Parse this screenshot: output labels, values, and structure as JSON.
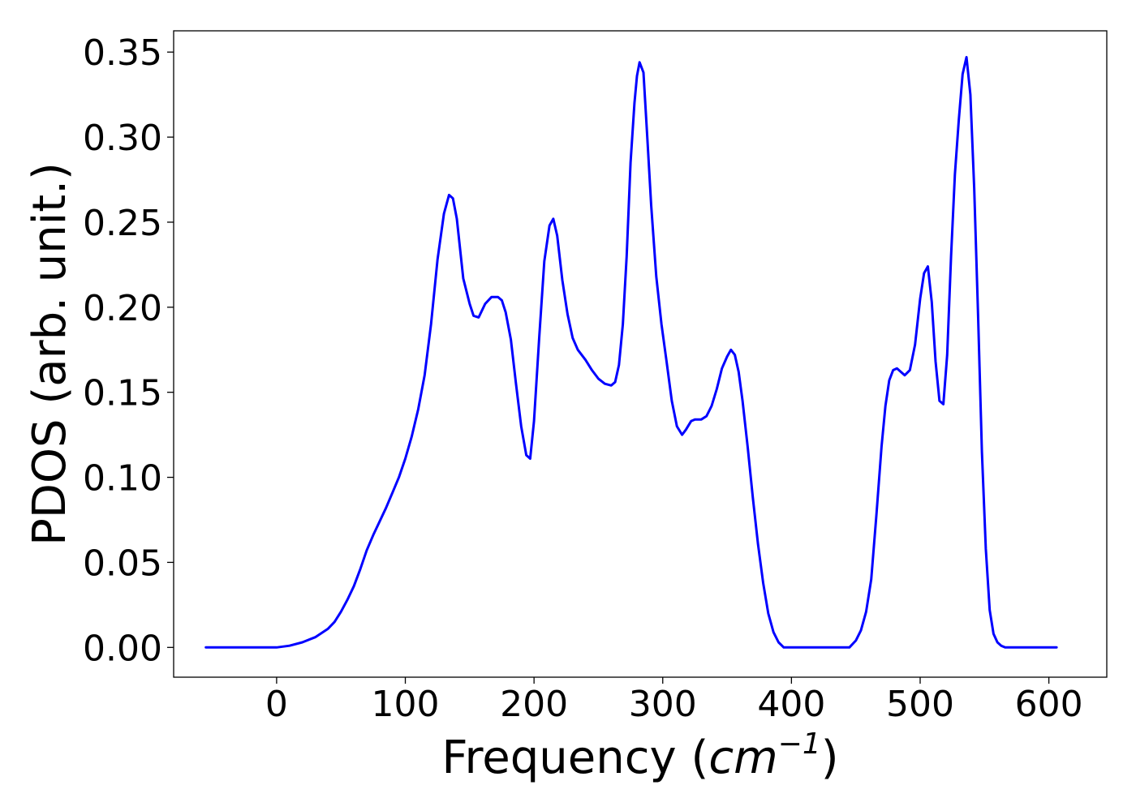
{
  "chart_data": {
    "type": "line",
    "title": "",
    "xlabel": {
      "prefix": "Frequency (",
      "unit": "cm",
      "exponent": "−1",
      "suffix": ")"
    },
    "ylabel": "PDOS (arb. unit.)",
    "xlim": [
      -80,
      645
    ],
    "ylim": [
      -0.0175,
      0.3625
    ],
    "x_ticks": [
      0,
      100,
      200,
      300,
      400,
      500,
      600
    ],
    "x_tick_labels": [
      "0",
      "100",
      "200",
      "300",
      "400",
      "500",
      "600"
    ],
    "y_ticks": [
      0.0,
      0.05,
      0.1,
      0.15,
      0.2,
      0.25,
      0.3,
      0.35
    ],
    "y_tick_labels": [
      "0.00",
      "0.05",
      "0.10",
      "0.15",
      "0.20",
      "0.25",
      "0.30",
      "0.35"
    ],
    "grid": false,
    "legend": "none",
    "line_color": "#0000ff",
    "series": [
      {
        "x": [
          -55,
          -30,
          0,
          10,
          20,
          30,
          40,
          45,
          50,
          55,
          60,
          65,
          70,
          75,
          80,
          85,
          90,
          95,
          100,
          105,
          110,
          115,
          120,
          125,
          130,
          134,
          137,
          140,
          145,
          150,
          153,
          157,
          162,
          167,
          172,
          175,
          178,
          182,
          186,
          190,
          194,
          197,
          200,
          204,
          208,
          212,
          215,
          218,
          222,
          226,
          230,
          234,
          240,
          245,
          250,
          255,
          260,
          263,
          266,
          269,
          272,
          275,
          278,
          280,
          282,
          285,
          288,
          291,
          295,
          299,
          303,
          307,
          311,
          315,
          318,
          322,
          325,
          330,
          334,
          338,
          342,
          346,
          350,
          353,
          356,
          359,
          362,
          366,
          370,
          374,
          378,
          382,
          386,
          390,
          394,
          400,
          410,
          420,
          430,
          440,
          445,
          450,
          454,
          458,
          462,
          466,
          470,
          473,
          476,
          479,
          482,
          485,
          488,
          492,
          496,
          500,
          503,
          506,
          509,
          512,
          515,
          518,
          521,
          524,
          527,
          530,
          533,
          536,
          539,
          542,
          545,
          548,
          551,
          554,
          557,
          560,
          563,
          566,
          570,
          580,
          600,
          606
        ],
        "y": [
          0.0,
          0.0,
          0.0,
          0.001,
          0.003,
          0.006,
          0.011,
          0.015,
          0.021,
          0.028,
          0.036,
          0.046,
          0.057,
          0.066,
          0.074,
          0.082,
          0.091,
          0.1,
          0.111,
          0.124,
          0.14,
          0.16,
          0.19,
          0.228,
          0.255,
          0.266,
          0.264,
          0.252,
          0.217,
          0.202,
          0.195,
          0.194,
          0.202,
          0.206,
          0.206,
          0.204,
          0.197,
          0.181,
          0.155,
          0.13,
          0.113,
          0.111,
          0.133,
          0.182,
          0.227,
          0.248,
          0.252,
          0.242,
          0.216,
          0.196,
          0.182,
          0.175,
          0.169,
          0.163,
          0.158,
          0.155,
          0.154,
          0.156,
          0.166,
          0.19,
          0.23,
          0.285,
          0.32,
          0.336,
          0.344,
          0.338,
          0.3,
          0.26,
          0.218,
          0.19,
          0.168,
          0.145,
          0.13,
          0.125,
          0.128,
          0.133,
          0.134,
          0.134,
          0.136,
          0.142,
          0.152,
          0.164,
          0.171,
          0.175,
          0.172,
          0.162,
          0.145,
          0.118,
          0.088,
          0.061,
          0.038,
          0.02,
          0.009,
          0.003,
          0.0,
          0.0,
          0.0,
          0.0,
          0.0,
          0.0,
          0.0,
          0.004,
          0.01,
          0.021,
          0.04,
          0.078,
          0.118,
          0.142,
          0.157,
          0.163,
          0.164,
          0.162,
          0.16,
          0.163,
          0.178,
          0.205,
          0.22,
          0.224,
          0.203,
          0.168,
          0.145,
          0.143,
          0.172,
          0.23,
          0.278,
          0.31,
          0.337,
          0.347,
          0.325,
          0.27,
          0.195,
          0.115,
          0.058,
          0.022,
          0.008,
          0.003,
          0.001,
          0.0,
          0.0,
          0.0,
          0.0,
          0.0
        ]
      }
    ]
  }
}
